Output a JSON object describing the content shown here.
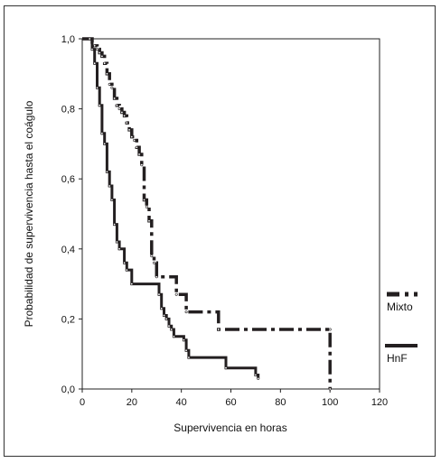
{
  "chart_data": {
    "type": "line",
    "xlabel": "Supervivencia en horas",
    "ylabel": "Probabilidad de supervivencia hasta el coágulo",
    "xlim": [
      0,
      120
    ],
    "ylim": [
      0,
      1
    ],
    "x_ticks": [
      0,
      20,
      40,
      60,
      80,
      100,
      120
    ],
    "x_tick_labels": [
      "0",
      "20",
      "40",
      "60",
      "80",
      "100",
      "120"
    ],
    "y_ticks": [
      0,
      0.2,
      0.4,
      0.6,
      0.8,
      1.0
    ],
    "y_tick_labels": [
      "0,0",
      "0,2",
      "0,4",
      "0,6",
      "0,8",
      "1,0"
    ],
    "grid": false,
    "legend_position": "right",
    "series": [
      {
        "name": "Mixto",
        "style": "dashdot",
        "color": "#231f20",
        "steps": [
          [
            0,
            1.0
          ],
          [
            3,
            1.0
          ],
          [
            4,
            0.99
          ],
          [
            5,
            0.98
          ],
          [
            6,
            0.97
          ],
          [
            7,
            0.96
          ],
          [
            8,
            0.95
          ],
          [
            9,
            0.93
          ],
          [
            10,
            0.9
          ],
          [
            11,
            0.87
          ],
          [
            12,
            0.86
          ],
          [
            13,
            0.83
          ],
          [
            14,
            0.81
          ],
          [
            15,
            0.8
          ],
          [
            16,
            0.79
          ],
          [
            17,
            0.78
          ],
          [
            18,
            0.76
          ],
          [
            19,
            0.74
          ],
          [
            20,
            0.72
          ],
          [
            21,
            0.71
          ],
          [
            22,
            0.69
          ],
          [
            23,
            0.67
          ],
          [
            24,
            0.64
          ],
          [
            25,
            0.54
          ],
          [
            26,
            0.52
          ],
          [
            27,
            0.48
          ],
          [
            28,
            0.38
          ],
          [
            29,
            0.36
          ],
          [
            30,
            0.32
          ],
          [
            38,
            0.27
          ],
          [
            42,
            0.22
          ],
          [
            55,
            0.17
          ],
          [
            100,
            0.17
          ],
          [
            100,
            0.0
          ]
        ]
      },
      {
        "name": "HnF",
        "style": "solid",
        "color": "#231f20",
        "steps": [
          [
            0,
            1.0
          ],
          [
            3,
            1.0
          ],
          [
            4,
            0.97
          ],
          [
            5,
            0.93
          ],
          [
            6,
            0.86
          ],
          [
            7,
            0.81
          ],
          [
            8,
            0.73
          ],
          [
            9,
            0.7
          ],
          [
            10,
            0.62
          ],
          [
            11,
            0.58
          ],
          [
            12,
            0.54
          ],
          [
            13,
            0.47
          ],
          [
            14,
            0.42
          ],
          [
            15,
            0.4
          ],
          [
            17,
            0.36
          ],
          [
            18,
            0.34
          ],
          [
            20,
            0.3
          ],
          [
            31,
            0.27
          ],
          [
            32,
            0.23
          ],
          [
            33,
            0.21
          ],
          [
            34,
            0.2
          ],
          [
            35,
            0.18
          ],
          [
            36,
            0.17
          ],
          [
            37,
            0.15
          ],
          [
            41,
            0.14
          ],
          [
            42,
            0.11
          ],
          [
            43,
            0.09
          ],
          [
            58,
            0.06
          ],
          [
            70,
            0.04
          ],
          [
            71,
            0.03
          ]
        ]
      }
    ]
  },
  "legend": [
    {
      "label": "Mixto",
      "style": "dashdot"
    },
    {
      "label": "HnF",
      "style": "solid"
    }
  ]
}
